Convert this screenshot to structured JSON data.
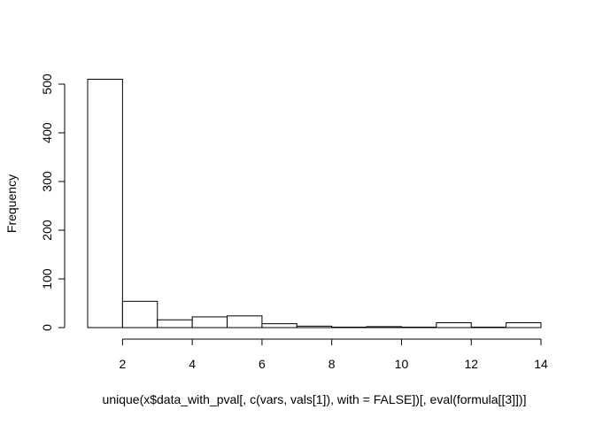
{
  "chart_data": {
    "type": "bar",
    "title": "",
    "xlabel": "unique(x$data_with_pval[, c(vars, vals[1]), with = FALSE])[, eval(formula[[3]])]",
    "ylabel": "Frequency",
    "bins": [
      {
        "x0": 1,
        "x1": 2,
        "count": 510
      },
      {
        "x0": 2,
        "x1": 3,
        "count": 54
      },
      {
        "x0": 3,
        "x1": 4,
        "count": 16
      },
      {
        "x0": 4,
        "x1": 5,
        "count": 22
      },
      {
        "x0": 5,
        "x1": 6,
        "count": 24
      },
      {
        "x0": 6,
        "x1": 7,
        "count": 8
      },
      {
        "x0": 7,
        "x1": 8,
        "count": 3
      },
      {
        "x0": 8,
        "x1": 9,
        "count": 1
      },
      {
        "x0": 9,
        "x1": 10,
        "count": 2
      },
      {
        "x0": 10,
        "x1": 11,
        "count": 1
      },
      {
        "x0": 11,
        "x1": 12,
        "count": 10
      },
      {
        "x0": 12,
        "x1": 13,
        "count": 1
      },
      {
        "x0": 13,
        "x1": 14,
        "count": 10
      }
    ],
    "xlim": [
      1,
      14
    ],
    "ylim": [
      0,
      510
    ],
    "xticks": [
      2,
      4,
      6,
      8,
      10,
      12,
      14
    ],
    "yticks": [
      0,
      100,
      200,
      300,
      400,
      500
    ],
    "grid": false
  }
}
